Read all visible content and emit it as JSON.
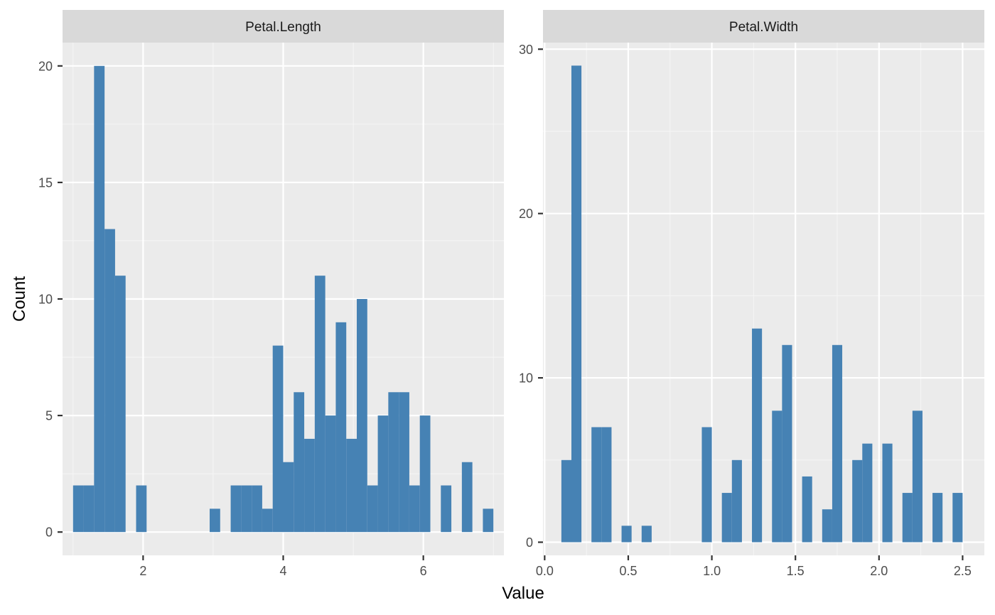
{
  "chart_data": {
    "type": "bar",
    "xlabel": "Value",
    "ylabel": "Count",
    "panels": [
      {
        "name": "Petal.Length",
        "xlim": [
          0.85,
          7.15
        ],
        "ylim": [
          -1.0,
          21.0
        ],
        "x_ticks": [
          2,
          4,
          6
        ],
        "y_ticks": [
          0,
          5,
          10,
          15,
          20
        ],
        "bin_width": 0.15,
        "bins": [
          {
            "x": 1.0,
            "count": 2
          },
          {
            "x": 1.15,
            "count": 2
          },
          {
            "x": 1.3,
            "count": 20
          },
          {
            "x": 1.45,
            "count": 13
          },
          {
            "x": 1.6,
            "count": 11
          },
          {
            "x": 1.75,
            "count": 0
          },
          {
            "x": 1.9,
            "count": 2
          },
          {
            "x": 2.05,
            "count": 0
          },
          {
            "x": 2.2,
            "count": 0
          },
          {
            "x": 2.35,
            "count": 0
          },
          {
            "x": 2.5,
            "count": 0
          },
          {
            "x": 2.65,
            "count": 0
          },
          {
            "x": 2.8,
            "count": 0
          },
          {
            "x": 2.95,
            "count": 1
          },
          {
            "x": 3.1,
            "count": 0
          },
          {
            "x": 3.25,
            "count": 2
          },
          {
            "x": 3.4,
            "count": 2
          },
          {
            "x": 3.55,
            "count": 2
          },
          {
            "x": 3.7,
            "count": 1
          },
          {
            "x": 3.85,
            "count": 8
          },
          {
            "x": 4.0,
            "count": 3
          },
          {
            "x": 4.15,
            "count": 6
          },
          {
            "x": 4.3,
            "count": 4
          },
          {
            "x": 4.45,
            "count": 11
          },
          {
            "x": 4.6,
            "count": 5
          },
          {
            "x": 4.75,
            "count": 9
          },
          {
            "x": 4.9,
            "count": 4
          },
          {
            "x": 5.05,
            "count": 10
          },
          {
            "x": 5.2,
            "count": 2
          },
          {
            "x": 5.35,
            "count": 5
          },
          {
            "x": 5.5,
            "count": 6
          },
          {
            "x": 5.65,
            "count": 6
          },
          {
            "x": 5.8,
            "count": 2
          },
          {
            "x": 5.95,
            "count": 5
          },
          {
            "x": 6.1,
            "count": 0
          },
          {
            "x": 6.25,
            "count": 2
          },
          {
            "x": 6.4,
            "count": 0
          },
          {
            "x": 6.55,
            "count": 3
          },
          {
            "x": 6.7,
            "count": 0
          },
          {
            "x": 6.85,
            "count": 1
          }
        ]
      },
      {
        "name": "Petal.Width",
        "xlim": [
          -0.01,
          2.63
        ],
        "ylim": [
          -0.8,
          30.4
        ],
        "x_ticks": [
          0.0,
          0.5,
          1.0,
          1.5,
          2.0,
          2.5
        ],
        "x_tick_labels": [
          "0.0",
          "0.5",
          "1.0",
          "1.5",
          "2.0",
          "2.5"
        ],
        "y_ticks": [
          0,
          10,
          20,
          30
        ],
        "bin_width": 0.06,
        "bins": [
          {
            "x": 0.1,
            "count": 5
          },
          {
            "x": 0.16,
            "count": 29
          },
          {
            "x": 0.22,
            "count": 0
          },
          {
            "x": 0.28,
            "count": 7
          },
          {
            "x": 0.34,
            "count": 7
          },
          {
            "x": 0.4,
            "count": 0
          },
          {
            "x": 0.46,
            "count": 1
          },
          {
            "x": 0.52,
            "count": 0
          },
          {
            "x": 0.58,
            "count": 1
          },
          {
            "x": 0.64,
            "count": 0
          },
          {
            "x": 0.7,
            "count": 0
          },
          {
            "x": 0.76,
            "count": 0
          },
          {
            "x": 0.82,
            "count": 0
          },
          {
            "x": 0.88,
            "count": 0
          },
          {
            "x": 0.94,
            "count": 7
          },
          {
            "x": 1.0,
            "count": 0
          },
          {
            "x": 1.06,
            "count": 3
          },
          {
            "x": 1.12,
            "count": 5
          },
          {
            "x": 1.18,
            "count": 0
          },
          {
            "x": 1.24,
            "count": 13
          },
          {
            "x": 1.3,
            "count": 0
          },
          {
            "x": 1.36,
            "count": 8
          },
          {
            "x": 1.42,
            "count": 12
          },
          {
            "x": 1.48,
            "count": 0
          },
          {
            "x": 1.54,
            "count": 4
          },
          {
            "x": 1.6,
            "count": 0
          },
          {
            "x": 1.66,
            "count": 2
          },
          {
            "x": 1.72,
            "count": 12
          },
          {
            "x": 1.78,
            "count": 0
          },
          {
            "x": 1.84,
            "count": 5
          },
          {
            "x": 1.9,
            "count": 6
          },
          {
            "x": 1.96,
            "count": 0
          },
          {
            "x": 2.02,
            "count": 6
          },
          {
            "x": 2.08,
            "count": 0
          },
          {
            "x": 2.14,
            "count": 3
          },
          {
            "x": 2.2,
            "count": 8
          },
          {
            "x": 2.26,
            "count": 0
          },
          {
            "x": 2.32,
            "count": 3
          },
          {
            "x": 2.38,
            "count": 0
          },
          {
            "x": 2.44,
            "count": 3
          }
        ]
      }
    ],
    "colors": {
      "bar_fill": "#4682B4",
      "panel_bg": "#EBEBEB",
      "strip_bg": "#D9D9D9",
      "grid_major": "#FFFFFF",
      "grid_minor": "#F5F5F5"
    },
    "grid": true,
    "legend": "none"
  }
}
